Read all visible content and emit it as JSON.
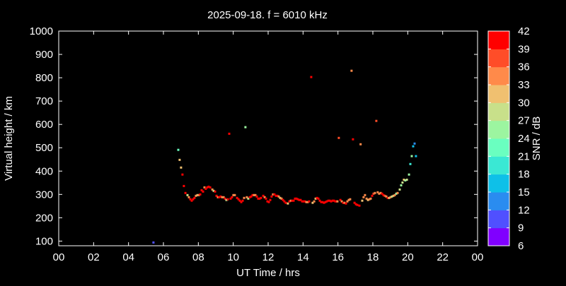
{
  "chart_data": {
    "type": "scatter",
    "title": "2025-09-18. f = 6010 kHz",
    "xlabel": "UT Time / hrs",
    "ylabel": "Virtual height / km",
    "xlim": [
      0,
      24
    ],
    "ylim": [
      80,
      1000
    ],
    "xticks": [
      "00",
      "02",
      "04",
      "06",
      "08",
      "10",
      "12",
      "14",
      "16",
      "18",
      "20",
      "22",
      "00"
    ],
    "yticks": [
      100,
      200,
      300,
      400,
      500,
      600,
      700,
      800,
      900,
      1000
    ],
    "grid": false,
    "colorbar": {
      "label": "SNR / dB",
      "ticks": [
        6,
        9,
        12,
        15,
        18,
        21,
        24,
        27,
        30,
        33,
        36,
        39,
        42
      ],
      "colors": [
        "#8000ff",
        "#5050ff",
        "#2a8cf0",
        "#0ec0e8",
        "#3ae8d4",
        "#6affc0",
        "#9cf5a0",
        "#c8e08a",
        "#f0c070",
        "#ff8a4a",
        "#ff4d28",
        "#ff0000"
      ]
    },
    "point_fields": [
      "time_hrs",
      "height_km",
      "snr_db"
    ],
    "points": [
      [
        5.43,
        94,
        10.5
      ],
      [
        6.85,
        491,
        22.5
      ],
      [
        6.93,
        448,
        31.5
      ],
      [
        7.01,
        415,
        31.5
      ],
      [
        7.09,
        385,
        40.5
      ],
      [
        7.17,
        336,
        40.5
      ],
      [
        9.77,
        560,
        40.5
      ],
      [
        10.7,
        588,
        25.5
      ],
      [
        14.47,
        803,
        40.5
      ],
      [
        16.78,
        830,
        34.5
      ],
      [
        16.05,
        542,
        37.5
      ],
      [
        16.86,
        536,
        40.5
      ],
      [
        17.3,
        515,
        34.5
      ],
      [
        18.2,
        615,
        37.5
      ],
      [
        7.26,
        306,
        40.5
      ],
      [
        7.38,
        297,
        28.5
      ],
      [
        7.46,
        288,
        34.5
      ],
      [
        7.54,
        279,
        40.5
      ],
      [
        7.62,
        273,
        40.5
      ],
      [
        7.7,
        279,
        40.5
      ],
      [
        7.78,
        285,
        40.5
      ],
      [
        7.86,
        294,
        34.5
      ],
      [
        7.95,
        297,
        31.5
      ],
      [
        8.03,
        297,
        34.5
      ],
      [
        8.11,
        300,
        40.5
      ],
      [
        8.19,
        318,
        40.5
      ],
      [
        8.27,
        312,
        40.5
      ],
      [
        8.35,
        330,
        34.5
      ],
      [
        8.43,
        324,
        40.5
      ],
      [
        8.51,
        330,
        40.5
      ],
      [
        8.59,
        333,
        40.5
      ],
      [
        8.68,
        330,
        40.5
      ],
      [
        8.8,
        321,
        34.5
      ],
      [
        8.88,
        315,
        28.5
      ],
      [
        8.96,
        312,
        40.5
      ],
      [
        9.04,
        294,
        40.5
      ],
      [
        9.12,
        288,
        34.5
      ],
      [
        9.2,
        288,
        40.5
      ],
      [
        9.28,
        291,
        40.5
      ],
      [
        9.36,
        288,
        34.5
      ],
      [
        9.45,
        288,
        34.5
      ],
      [
        9.53,
        282,
        40.5
      ],
      [
        9.61,
        276,
        28.5
      ],
      [
        9.69,
        279,
        40.5
      ],
      [
        9.85,
        282,
        40.5
      ],
      [
        9.93,
        288,
        40.5
      ],
      [
        10.01,
        297,
        34.5
      ],
      [
        10.09,
        297,
        34.5
      ],
      [
        10.22,
        285,
        40.5
      ],
      [
        10.3,
        279,
        40.5
      ],
      [
        10.38,
        273,
        40.5
      ],
      [
        10.46,
        267,
        40.5
      ],
      [
        10.54,
        273,
        40.5
      ],
      [
        10.62,
        285,
        34.5
      ],
      [
        10.78,
        288,
        34.5
      ],
      [
        10.86,
        282,
        28.5
      ],
      [
        10.95,
        288,
        40.5
      ],
      [
        11.03,
        291,
        40.5
      ],
      [
        11.11,
        297,
        40.5
      ],
      [
        11.19,
        297,
        34.5
      ],
      [
        11.27,
        297,
        34.5
      ],
      [
        11.35,
        291,
        40.5
      ],
      [
        11.43,
        282,
        40.5
      ],
      [
        11.51,
        282,
        40.5
      ],
      [
        11.59,
        285,
        40.5
      ],
      [
        11.72,
        294,
        40.5
      ],
      [
        11.8,
        288,
        34.5
      ],
      [
        11.88,
        282,
        40.5
      ],
      [
        11.96,
        270,
        40.5
      ],
      [
        12.04,
        267,
        40.5
      ],
      [
        12.12,
        276,
        40.5
      ],
      [
        12.2,
        291,
        40.5
      ],
      [
        12.28,
        300,
        34.5
      ],
      [
        12.36,
        300,
        40.5
      ],
      [
        12.45,
        294,
        40.5
      ],
      [
        12.53,
        294,
        40.5
      ],
      [
        12.61,
        291,
        34.5
      ],
      [
        12.69,
        285,
        31.5
      ],
      [
        12.77,
        282,
        34.5
      ],
      [
        12.85,
        276,
        40.5
      ],
      [
        12.93,
        270,
        40.5
      ],
      [
        13.01,
        264,
        40.5
      ],
      [
        13.13,
        261,
        31.5
      ],
      [
        13.22,
        270,
        40.5
      ],
      [
        13.3,
        273,
        34.5
      ],
      [
        13.38,
        273,
        40.5
      ],
      [
        13.46,
        273,
        40.5
      ],
      [
        13.54,
        282,
        40.5
      ],
      [
        13.62,
        282,
        40.5
      ],
      [
        13.7,
        279,
        40.5
      ],
      [
        13.78,
        276,
        40.5
      ],
      [
        13.86,
        276,
        40.5
      ],
      [
        13.95,
        270,
        40.5
      ],
      [
        14.03,
        270,
        40.5
      ],
      [
        14.11,
        270,
        40.5
      ],
      [
        14.19,
        267,
        34.5
      ],
      [
        14.27,
        267,
        34.5
      ],
      [
        14.35,
        270,
        40.5
      ],
      [
        14.55,
        264,
        31.5
      ],
      [
        14.64,
        270,
        34.5
      ],
      [
        14.72,
        282,
        31.5
      ],
      [
        14.8,
        285,
        40.5
      ],
      [
        14.88,
        282,
        40.5
      ],
      [
        14.96,
        273,
        40.5
      ],
      [
        15.04,
        267,
        40.5
      ],
      [
        15.12,
        267,
        40.5
      ],
      [
        15.2,
        264,
        40.5
      ],
      [
        15.28,
        267,
        40.5
      ],
      [
        15.36,
        270,
        40.5
      ],
      [
        15.45,
        273,
        40.5
      ],
      [
        15.53,
        273,
        40.5
      ],
      [
        15.61,
        270,
        40.5
      ],
      [
        15.69,
        273,
        40.5
      ],
      [
        15.77,
        273,
        40.5
      ],
      [
        15.85,
        270,
        40.5
      ],
      [
        15.93,
        270,
        40.5
      ],
      [
        15.97,
        270,
        34.5
      ],
      [
        16.14,
        276,
        40.5
      ],
      [
        16.22,
        270,
        34.5
      ],
      [
        16.3,
        264,
        40.5
      ],
      [
        16.38,
        264,
        34.5
      ],
      [
        16.46,
        261,
        40.5
      ],
      [
        16.54,
        270,
        34.5
      ],
      [
        16.62,
        276,
        34.5
      ],
      [
        16.7,
        279,
        34.5
      ],
      [
        16.95,
        264,
        40.5
      ],
      [
        17.03,
        258,
        40.5
      ],
      [
        17.11,
        255,
        40.5
      ],
      [
        17.23,
        252,
        40.5
      ],
      [
        17.39,
        273,
        31.5
      ],
      [
        17.47,
        288,
        34.5
      ],
      [
        17.55,
        297,
        34.5
      ],
      [
        17.64,
        282,
        34.5
      ],
      [
        17.72,
        276,
        31.5
      ],
      [
        17.8,
        279,
        34.5
      ],
      [
        17.88,
        282,
        34.5
      ],
      [
        17.96,
        294,
        40.5
      ],
      [
        18.04,
        303,
        37.5
      ],
      [
        18.12,
        306,
        34.5
      ],
      [
        18.28,
        309,
        34.5
      ],
      [
        18.36,
        303,
        34.5
      ],
      [
        18.45,
        306,
        34.5
      ],
      [
        18.53,
        303,
        40.5
      ],
      [
        18.61,
        297,
        40.5
      ],
      [
        18.69,
        294,
        37.5
      ],
      [
        18.77,
        291,
        34.5
      ],
      [
        18.85,
        285,
        40.5
      ],
      [
        18.93,
        285,
        31.5
      ],
      [
        19.01,
        288,
        34.5
      ],
      [
        19.09,
        291,
        28.5
      ],
      [
        19.18,
        294,
        31.5
      ],
      [
        19.26,
        297,
        34.5
      ],
      [
        19.34,
        303,
        25.5
      ],
      [
        19.42,
        306,
        34.5
      ],
      [
        19.54,
        321,
        28.5
      ],
      [
        19.62,
        339,
        25.5
      ],
      [
        19.7,
        351,
        28.5
      ],
      [
        19.78,
        363,
        31.5
      ],
      [
        19.86,
        360,
        25.5
      ],
      [
        19.95,
        363,
        28.5
      ],
      [
        20.07,
        385,
        25.5
      ],
      [
        20.15,
        430,
        19.5
      ],
      [
        20.23,
        464,
        25.5
      ],
      [
        20.47,
        464,
        16.5
      ],
      [
        20.31,
        506,
        16.5
      ],
      [
        20.39,
        518,
        13.5
      ]
    ]
  }
}
